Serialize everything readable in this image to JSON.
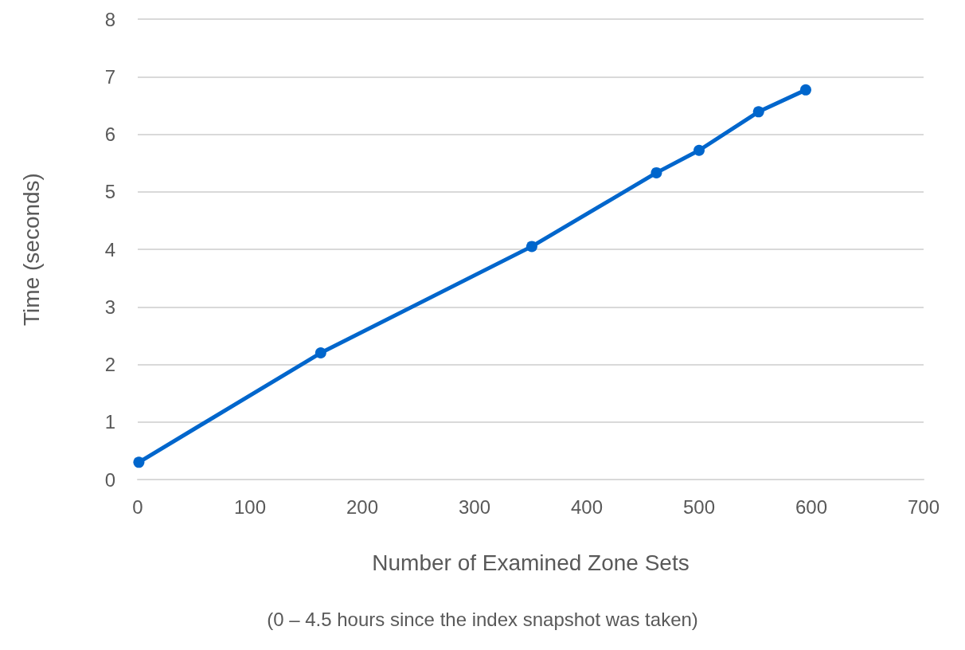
{
  "chart_data": {
    "type": "line",
    "xlabel": "Number of Examined Zone Sets",
    "ylabel": "Time (seconds)",
    "annotations": [
      "(0 – 4.5 hours since the index snapshot was taken)"
    ],
    "series": [
      {
        "color": "#0066cc",
        "x": [
          1,
          163,
          351,
          462,
          500,
          553,
          595
        ],
        "values": [
          0.3,
          2.2,
          4.05,
          5.33,
          5.72,
          6.39,
          6.77
        ]
      }
    ],
    "xlim": [
      0,
      700
    ],
    "xticks": [
      0,
      100,
      200,
      300,
      400,
      500,
      600,
      700
    ],
    "ylim": [
      0,
      8
    ],
    "yticks": [
      0,
      1,
      2,
      3,
      4,
      5,
      6,
      7,
      8
    ],
    "grid": "y",
    "marker": "circle",
    "line_style": "solid"
  }
}
